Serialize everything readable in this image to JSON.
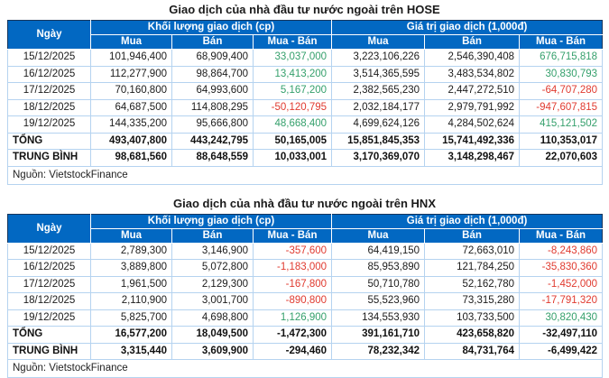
{
  "colors": {
    "header_bg": "#0268c2",
    "header_text": "#ffffff",
    "positive": "#35a06c",
    "negative": "#e03a2f",
    "grid": "#b5d3f0",
    "outer_border": "#16365c",
    "title_text": "#1a1a1a"
  },
  "chart_data": [
    {
      "type": "table",
      "title": "Giao dịch của nhà đầu tư nước ngoài trên HOSE",
      "header": {
        "date_col": "Ngày",
        "volume_group": "Khối lượng giao dịch (cp)",
        "value_group": "Giá trị giao dịch (1,000đ)",
        "sub": [
          "Mua",
          "Bán",
          "Mua - Bán",
          "Mua",
          "Bán",
          "Mua - Bán"
        ]
      },
      "rows": [
        [
          "15/12/2025",
          "101,946,400",
          "68,909,400",
          "33,037,000",
          "3,223,106,226",
          "2,546,390,408",
          "676,715,818"
        ],
        [
          "16/12/2025",
          "112,277,900",
          "98,864,700",
          "13,413,200",
          "3,514,365,595",
          "3,483,534,802",
          "30,830,793"
        ],
        [
          "17/12/2025",
          "70,160,800",
          "64,993,600",
          "5,167,200",
          "2,382,565,230",
          "2,447,272,510",
          "-64,707,280"
        ],
        [
          "18/12/2025",
          "64,687,500",
          "114,808,295",
          "-50,120,795",
          "2,032,184,177",
          "2,979,791,992",
          "-947,607,815"
        ],
        [
          "19/12/2025",
          "144,335,200",
          "95,666,800",
          "48,668,400",
          "4,699,624,126",
          "4,284,502,624",
          "415,121,502"
        ]
      ],
      "total": {
        "label": "TỔNG",
        "values": [
          "493,407,800",
          "443,242,795",
          "50,165,005",
          "15,851,845,353",
          "15,741,492,336",
          "110,353,017"
        ]
      },
      "average": {
        "label": "TRUNG BÌNH",
        "values": [
          "98,681,560",
          "88,648,559",
          "10,033,001",
          "3,170,369,070",
          "3,148,298,467",
          "22,070,603"
        ]
      },
      "source": "Nguồn: VietstockFinance"
    },
    {
      "type": "table",
      "title": "Giao dịch của nhà đầu tư nước ngoài trên HNX",
      "header": {
        "date_col": "Ngày",
        "volume_group": "Khối lượng giao dịch (cp)",
        "value_group": "Giá trị giao dịch (1,000đ)",
        "sub": [
          "Mua",
          "Bán",
          "Mua - Bán",
          "Mua",
          "Bán",
          "Mua - Bán"
        ]
      },
      "rows": [
        [
          "15/12/2025",
          "2,789,300",
          "3,146,900",
          "-357,600",
          "64,419,150",
          "72,663,010",
          "-8,243,860"
        ],
        [
          "16/12/2025",
          "3,889,800",
          "5,072,800",
          "-1,183,000",
          "85,953,890",
          "121,784,250",
          "-35,830,360"
        ],
        [
          "17/12/2025",
          "1,961,500",
          "2,129,300",
          "-167,800",
          "50,710,780",
          "52,162,780",
          "-1,452,000"
        ],
        [
          "18/12/2025",
          "2,110,900",
          "3,001,700",
          "-890,800",
          "55,523,960",
          "73,315,280",
          "-17,791,320"
        ],
        [
          "19/12/2025",
          "5,825,700",
          "4,698,800",
          "1,126,900",
          "134,553,930",
          "103,733,500",
          "30,820,430"
        ]
      ],
      "total": {
        "label": "TỔNG",
        "values": [
          "16,577,200",
          "18,049,500",
          "-1,472,300",
          "391,161,710",
          "423,658,820",
          "-32,497,110"
        ]
      },
      "average": {
        "label": "TRUNG BÌNH",
        "values": [
          "3,315,440",
          "3,609,900",
          "-294,460",
          "78,232,342",
          "84,731,764",
          "-6,499,422"
        ]
      },
      "source": "Nguồn: VietstockFinance"
    }
  ]
}
